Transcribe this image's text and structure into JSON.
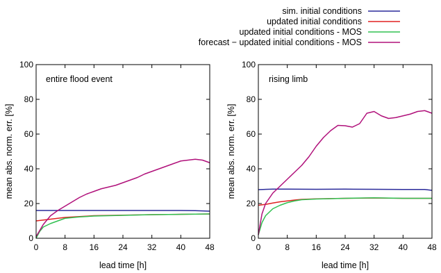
{
  "legend": [
    {
      "label": "sim. initial conditions",
      "color": "#2a2a9a"
    },
    {
      "label": "updated initial conditions",
      "color": "#e02020"
    },
    {
      "label": "updated initial conditions - MOS",
      "color": "#30c050"
    },
    {
      "label": "forecast − updated initial conditions - MOS",
      "color": "#b0107a"
    }
  ],
  "chart_data": [
    {
      "type": "line",
      "annotation": "entire flood event",
      "xlabel": "lead time [h]",
      "ylabel": "mean abs. norm. err. [%]",
      "xlim": [
        0,
        48
      ],
      "ylim": [
        0,
        100
      ],
      "xticks": [
        0,
        8,
        16,
        24,
        32,
        40,
        48
      ],
      "yticks": [
        0,
        20,
        40,
        60,
        80,
        100
      ],
      "grid": false,
      "series": [
        {
          "name": "sim. initial conditions",
          "color": "#2a2a9a",
          "x": [
            0,
            8,
            16,
            24,
            32,
            40,
            44,
            48
          ],
          "y": [
            16,
            16,
            16,
            16,
            16,
            16,
            15.9,
            15.6
          ]
        },
        {
          "name": "updated initial conditions",
          "color": "#e02020",
          "x": [
            0,
            4,
            8,
            12,
            16,
            24,
            32,
            40,
            48
          ],
          "y": [
            10,
            11,
            12,
            12.5,
            13,
            13.3,
            13.6,
            13.8,
            14
          ]
        },
        {
          "name": "updated initial conditions - MOS",
          "color": "#30c050",
          "x": [
            0,
            1,
            2,
            4,
            6,
            8,
            12,
            16,
            24,
            32,
            40,
            48
          ],
          "y": [
            0,
            4,
            6.5,
            8.5,
            10,
            11.5,
            12.3,
            12.8,
            13.2,
            13.6,
            13.8,
            14
          ]
        },
        {
          "name": "forecast − updated initial conditions - MOS",
          "color": "#b0107a",
          "x": [
            0,
            2,
            4,
            6,
            8,
            10,
            12,
            14,
            16,
            18,
            20,
            22,
            24,
            26,
            28,
            30,
            32,
            34,
            36,
            38,
            40,
            42,
            44,
            46,
            48
          ],
          "y": [
            1,
            8,
            13,
            16,
            18.5,
            21,
            23.5,
            25.5,
            27,
            28.5,
            29.5,
            30.5,
            32,
            33.5,
            35,
            37,
            38.5,
            40,
            41.5,
            43,
            44.5,
            45,
            45.5,
            45,
            43.5
          ]
        }
      ]
    },
    {
      "type": "line",
      "annotation": "rising limb",
      "xlabel": "lead time [h]",
      "ylabel": "mean abs. norm. err. [%]",
      "xlim": [
        0,
        48
      ],
      "ylim": [
        0,
        100
      ],
      "xticks": [
        0,
        8,
        16,
        24,
        32,
        40,
        48
      ],
      "yticks": [
        0,
        20,
        40,
        60,
        80,
        100
      ],
      "grid": false,
      "series": [
        {
          "name": "sim. initial conditions",
          "color": "#2a2a9a",
          "x": [
            0,
            4,
            8,
            16,
            24,
            32,
            40,
            46,
            48
          ],
          "y": [
            28,
            28.3,
            28.3,
            28.2,
            28.3,
            28.2,
            28.1,
            28.1,
            27.6
          ]
        },
        {
          "name": "updated initial conditions",
          "color": "#e02020",
          "x": [
            0,
            2,
            4,
            6,
            8,
            10,
            12,
            16,
            24,
            32,
            40,
            48
          ],
          "y": [
            19,
            19.5,
            20.3,
            21,
            21.5,
            22,
            22.4,
            22.7,
            23,
            23.2,
            23,
            23
          ]
        },
        {
          "name": "updated initial conditions - MOS",
          "color": "#30c050",
          "x": [
            0,
            1,
            2,
            4,
            6,
            8,
            10,
            12,
            16,
            24,
            32,
            40,
            48
          ],
          "y": [
            2,
            9,
            13,
            17,
            19,
            20.5,
            21.5,
            22.2,
            22.6,
            23,
            23.3,
            23,
            23
          ]
        },
        {
          "name": "forecast − updated initial conditions - MOS",
          "color": "#b0107a",
          "x": [
            0,
            1,
            2,
            4,
            6,
            8,
            10,
            12,
            14,
            16,
            18,
            20,
            22,
            24,
            26,
            28,
            30,
            32,
            34,
            36,
            38,
            40,
            42,
            44,
            46,
            48
          ],
          "y": [
            2,
            14,
            20,
            26,
            30,
            34,
            38,
            42,
            47,
            53,
            58,
            62,
            65,
            64.8,
            64,
            66,
            72,
            73,
            70.5,
            69,
            69.5,
            70.5,
            71.5,
            73,
            73.5,
            72
          ]
        }
      ]
    }
  ]
}
